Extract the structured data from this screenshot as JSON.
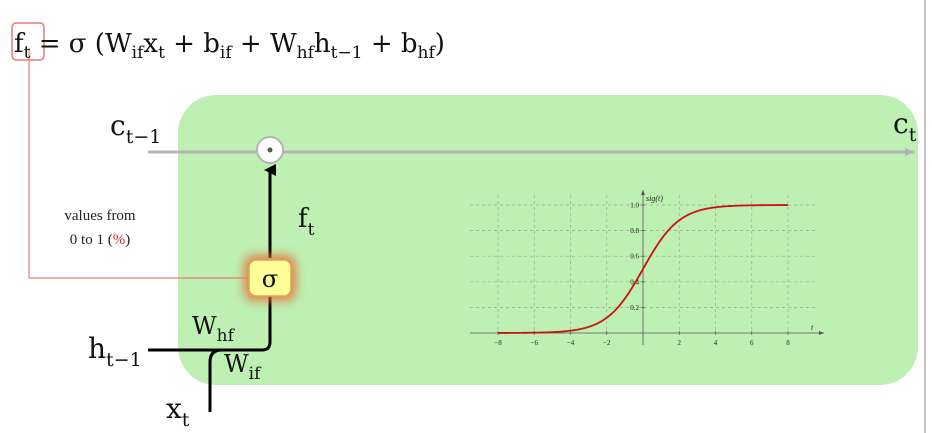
{
  "equation": {
    "lhs": "f",
    "lhs_sub": "t",
    "eq": " = σ  (W",
    "w1_sub": "if",
    "x": "x",
    "x_sub": "t",
    "plus1": " + b",
    "b1_sub": "if",
    "plus2": " + W",
    "w2_sub": "hf",
    "h": "h",
    "h_sub": "t−1",
    "plus3": " + b",
    "b2_sub": "hf",
    "close": ")"
  },
  "labels": {
    "c_prev": "c",
    "c_prev_sub": "t−1",
    "c_next": "c",
    "c_next_sub": "t",
    "f": "f",
    "f_sub": "t",
    "sigma": "σ",
    "w_hf": "W",
    "w_hf_sub": "hf",
    "w_if": "W",
    "w_if_sub": "if",
    "h_prev": "h",
    "h_prev_sub": "t−1",
    "x": "x",
    "x_sub": "t",
    "note_line1": "values from",
    "note_line2_a": "0 to 1 (",
    "note_line2_pct": "%",
    "note_line2_b": ")"
  },
  "colors": {
    "cell_bg": "#bdf0b2",
    "c_line": "#b4b4b4",
    "sigma_fill": "#ffff99",
    "sigma_glow": "#e8703a",
    "highlight": "#e87a7a",
    "curve": "#cc1111",
    "percent": "#e02020"
  },
  "chart_data": {
    "type": "line",
    "title": "",
    "xlabel": "t",
    "ylabel": "sig(t)",
    "function": "sigmoid",
    "xlim": [
      -8,
      8
    ],
    "ylim": [
      0,
      1.0
    ],
    "x_ticks": [
      "−8",
      "−6",
      "−4",
      "−2",
      "2",
      "4",
      "6",
      "8"
    ],
    "y_ticks": [
      "0.2",
      "0.4",
      "0.6",
      "0.8",
      "1.0"
    ],
    "series": [
      {
        "x": [
          -8,
          -6,
          -4,
          -3,
          -2,
          -1,
          0,
          1,
          2,
          3,
          4,
          6,
          8
        ],
        "y": [
          0.0003,
          0.0025,
          0.018,
          0.047,
          0.119,
          0.269,
          0.5,
          0.731,
          0.881,
          0.953,
          0.982,
          0.9975,
          0.9997
        ]
      }
    ],
    "grid": true
  }
}
